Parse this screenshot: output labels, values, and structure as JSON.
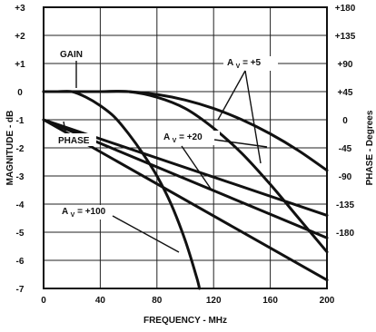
{
  "chart_data": {
    "type": "line",
    "x_axis": {
      "label": "FREQUENCY - MHz",
      "range": [
        0,
        200
      ],
      "ticks": [
        0,
        40,
        80,
        120,
        160,
        200
      ]
    },
    "y_axis_left": {
      "label": "MAGNITUDE - dB",
      "range": [
        -7,
        3
      ],
      "tick_labels": [
        "+3",
        "+2",
        "+1",
        "0",
        "-1",
        "-2",
        "-3",
        "-4",
        "-5",
        "-6",
        "-7"
      ]
    },
    "y_axis_right": {
      "label": "PHASE - Degrees",
      "range": [
        -180,
        180
      ],
      "tick_labels": [
        "+180",
        "+135",
        "+90",
        "+45",
        "0",
        "-45",
        "-90",
        "-135",
        "-180"
      ]
    },
    "grid": true,
    "annotations": {
      "gain": "GAIN",
      "phase": "PHASE",
      "av5": "A",
      "av5_sub": "V",
      "av5_val": " = +5",
      "av20": "A",
      "av20_sub": "V",
      "av20_val": " = +20",
      "av100": "A",
      "av100_sub": "V",
      "av100_val": " = +100"
    },
    "series": [
      {
        "group": "gain",
        "gain_setting": "+5",
        "points": [
          [
            0,
            0
          ],
          [
            20,
            0
          ],
          [
            40,
            0
          ],
          [
            60,
            0
          ],
          [
            80,
            -0.1
          ],
          [
            100,
            -0.3
          ],
          [
            120,
            -0.6
          ],
          [
            140,
            -1.0
          ],
          [
            160,
            -1.5
          ],
          [
            180,
            -2.1
          ],
          [
            200,
            -2.8
          ]
        ]
      },
      {
        "group": "gain",
        "gain_setting": "+20",
        "points": [
          [
            0,
            0
          ],
          [
            20,
            0
          ],
          [
            40,
            0
          ],
          [
            60,
            0
          ],
          [
            80,
            -0.2
          ],
          [
            100,
            -0.6
          ],
          [
            120,
            -1.3
          ],
          [
            140,
            -2.2
          ],
          [
            160,
            -3.3
          ],
          [
            180,
            -4.5
          ],
          [
            200,
            -5.7
          ]
        ]
      },
      {
        "group": "gain",
        "gain_setting": "+100",
        "points": [
          [
            0,
            0
          ],
          [
            10,
            0
          ],
          [
            20,
            0
          ],
          [
            30,
            -0.2
          ],
          [
            40,
            -0.5
          ],
          [
            50,
            -0.9
          ],
          [
            60,
            -1.5
          ],
          [
            70,
            -2.2
          ],
          [
            80,
            -3.0
          ],
          [
            90,
            -4.0
          ],
          [
            100,
            -5.3
          ],
          [
            108,
            -6.6
          ],
          [
            110,
            -7.0
          ]
        ]
      },
      {
        "group": "phase",
        "gain_setting": "+5",
        "points": [
          [
            0,
            -1
          ],
          [
            200,
            -4.4
          ]
        ]
      },
      {
        "group": "phase",
        "gain_setting": "+20",
        "points": [
          [
            0,
            -1
          ],
          [
            200,
            -5.2
          ]
        ]
      },
      {
        "group": "phase",
        "gain_setting": "+100",
        "points": [
          [
            0,
            -1
          ],
          [
            200,
            -6.7
          ]
        ]
      }
    ]
  }
}
